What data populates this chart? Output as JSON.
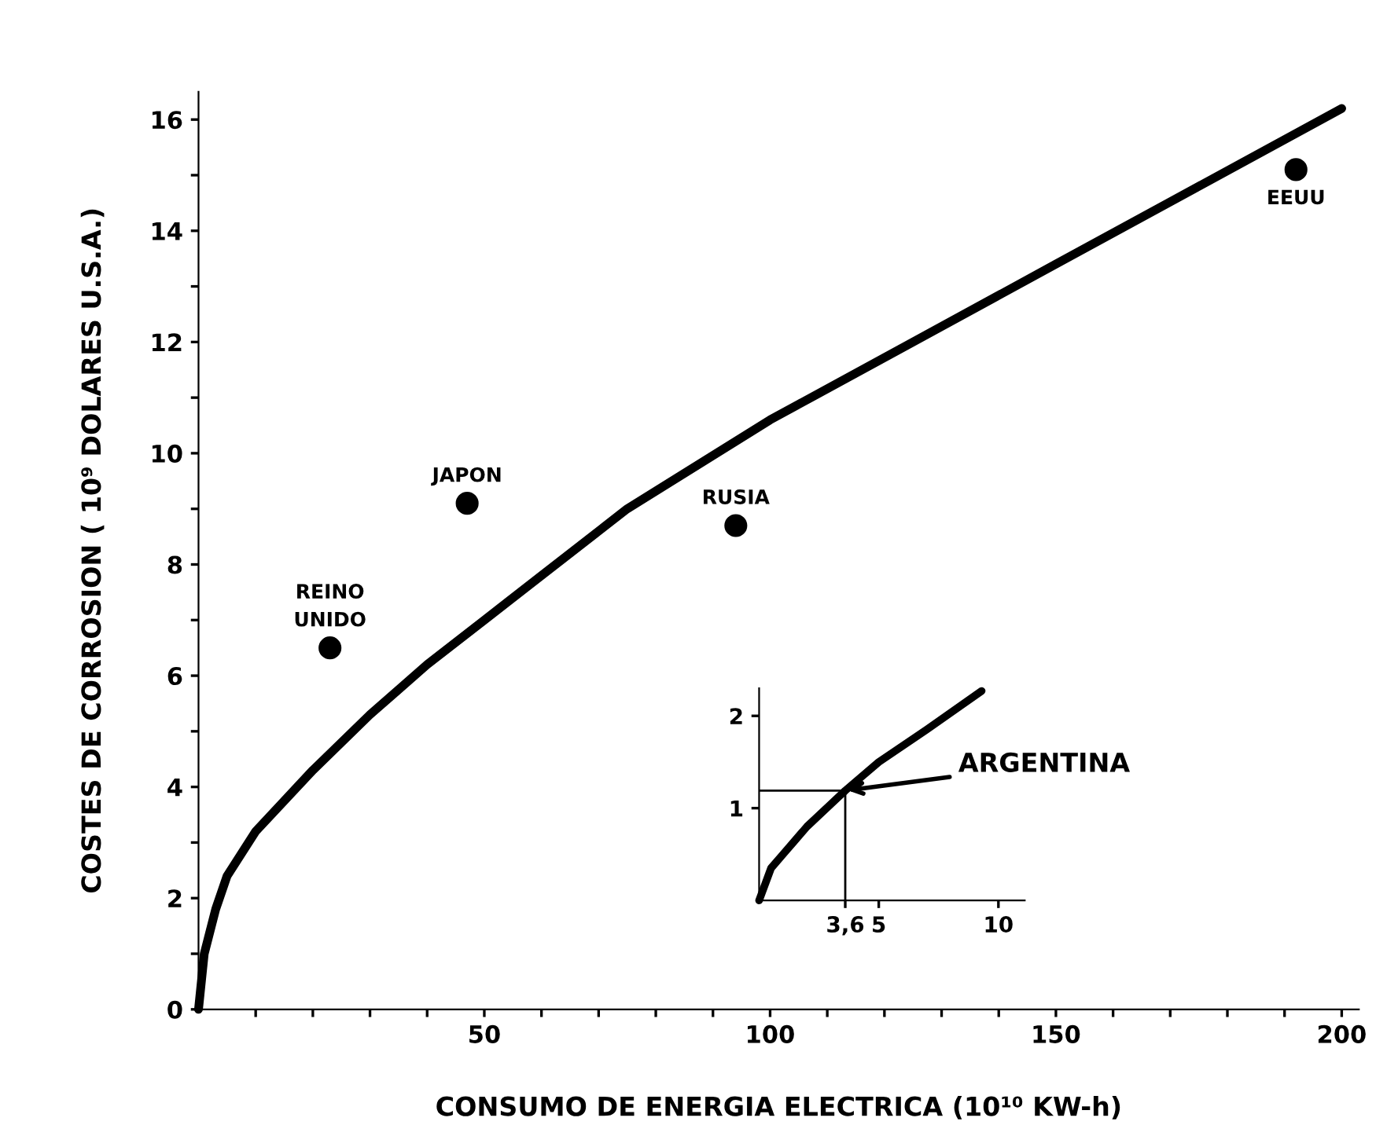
{
  "chart_data": [
    {
      "type": "line",
      "xlabel": "CONSUMO DE ENERGIA ELECTRICA (10¹⁰ KW-h)",
      "ylabel": "COSTES DE CORROSION ( 10⁹ DOLARES U.S.A.)",
      "series": [
        {
          "color": "#000000",
          "x": [
            0,
            1,
            3,
            5,
            10,
            20,
            30,
            40,
            50,
            60,
            75,
            100,
            125,
            150,
            175,
            200
          ],
          "values": [
            0,
            1.0,
            1.8,
            2.4,
            3.2,
            4.3,
            5.3,
            6.2,
            7.0,
            7.8,
            9.0,
            10.6,
            12.0,
            13.4,
            14.8,
            16.2
          ]
        },
        {
          "type": "scatter",
          "color": "#000000",
          "marker": "circle",
          "x": [
            23,
            47,
            94,
            192
          ],
          "values": [
            6.5,
            9.1,
            8.7,
            15.1
          ],
          "value_labels": [
            "REINO\nUNIDO",
            "JAPON",
            "RUSIA",
            "EEUU"
          ]
        }
      ],
      "xlim": [
        0,
        203
      ],
      "ylim": [
        0,
        16.5
      ],
      "xticks": [
        {
          "value": 10,
          "label": null
        },
        {
          "value": 20,
          "label": null
        },
        {
          "value": 30,
          "label": null
        },
        {
          "value": 40,
          "label": null
        },
        50,
        {
          "value": 60,
          "label": null
        },
        {
          "value": 70,
          "label": null
        },
        {
          "value": 80,
          "label": null
        },
        {
          "value": 90,
          "label": null
        },
        100,
        {
          "value": 110,
          "label": null
        },
        {
          "value": 120,
          "label": null
        },
        {
          "value": 130,
          "label": null
        },
        {
          "value": 140,
          "label": null
        },
        150,
        {
          "value": 160,
          "label": null
        },
        {
          "value": 170,
          "label": null
        },
        {
          "value": 180,
          "label": null
        },
        {
          "value": 190,
          "label": null
        },
        200
      ],
      "yticks": [
        0,
        {
          "value": 1,
          "label": null
        },
        2,
        {
          "value": 3,
          "label": null
        },
        4,
        {
          "value": 5,
          "label": null
        },
        6,
        {
          "value": 7,
          "label": null
        },
        8,
        {
          "value": 9,
          "label": null
        },
        10,
        {
          "value": 11,
          "label": null
        },
        12,
        {
          "value": 13,
          "label": null
        },
        14,
        {
          "value": 15,
          "label": null
        },
        16
      ],
      "grid": false,
      "legend": false
    },
    {
      "type": "line",
      "series": [
        {
          "color": "#000000",
          "x": [
            0,
            0.5,
            1,
            2,
            3.6,
            5,
            7,
            9.3
          ],
          "values": [
            0,
            0.35,
            0.5,
            0.8,
            1.19,
            1.5,
            1.85,
            2.27
          ]
        }
      ],
      "xlim": [
        0,
        11.1
      ],
      "ylim": [
        0,
        2.3
      ],
      "xticks": [
        {
          "value": 3.6,
          "label": "3,6"
        },
        5,
        10
      ],
      "yticks": [
        1,
        2
      ],
      "ref_lines": [
        {
          "axis": "x",
          "value": 3.6,
          "label": null
        },
        {
          "axis": "y",
          "value": 1.19,
          "label": null
        }
      ],
      "annotations": [
        {
          "text": "ARGENTINA",
          "x": 3.6,
          "y": 1.19
        }
      ],
      "grid": false,
      "legend": false
    }
  ]
}
